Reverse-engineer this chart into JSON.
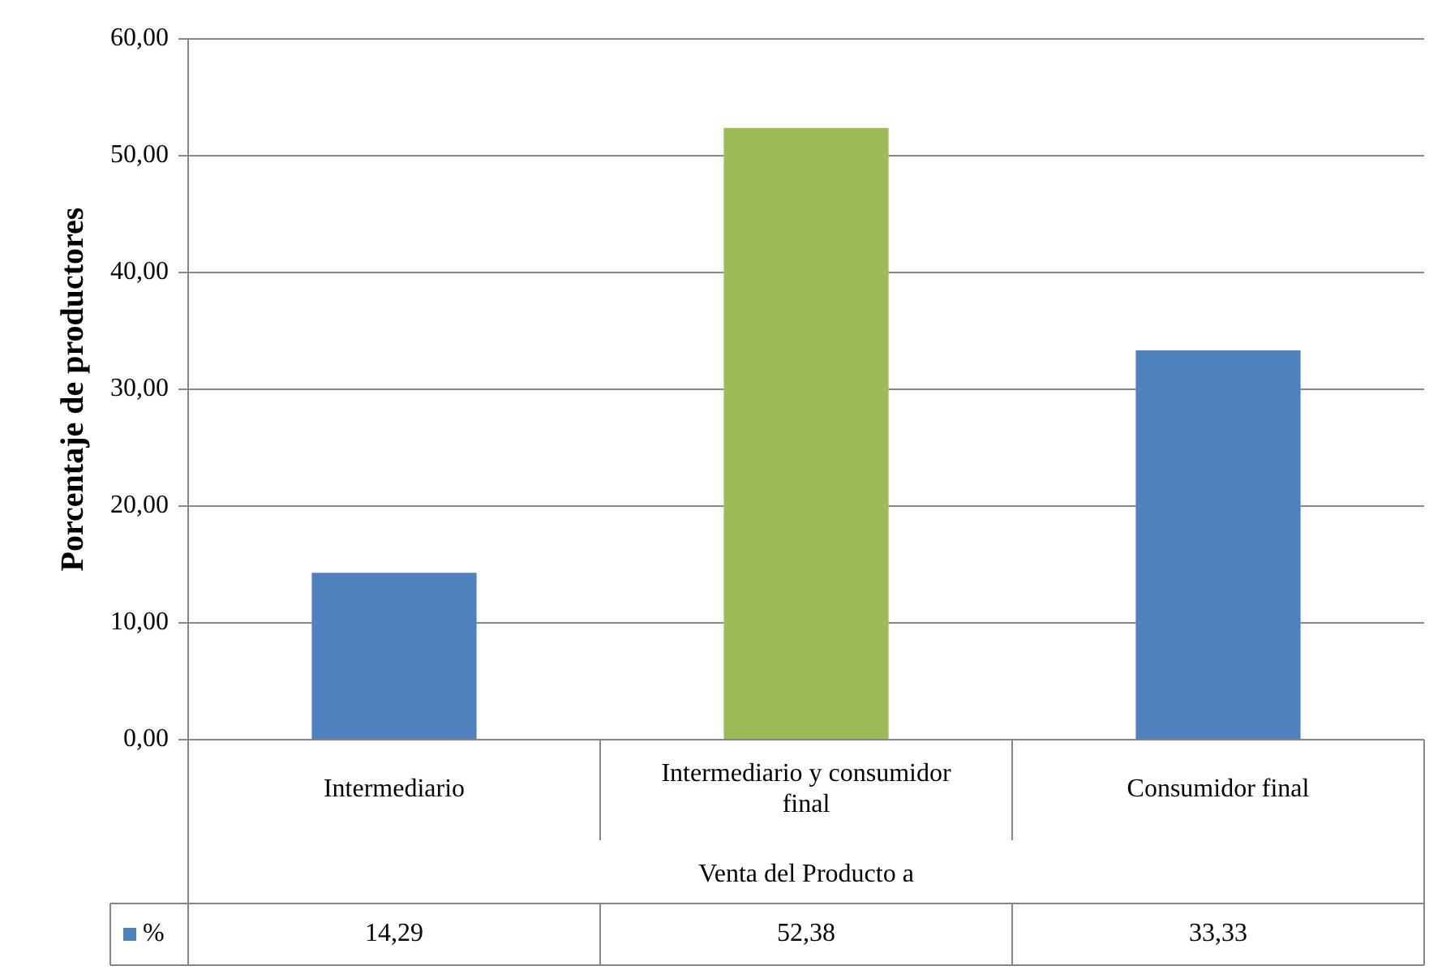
{
  "chart_data": {
    "type": "bar",
    "ylabel": "Porcentaje de productores",
    "xlabel": "Venta del Producto a",
    "categories": [
      "Intermediario",
      "Intermediario y consumidor final",
      "Consumidor final"
    ],
    "series": [
      {
        "name": "%",
        "color": "#4f81bd",
        "colors": [
          "#4f81bd",
          "#9bbb59",
          "#4f81bd"
        ],
        "values": [
          14.29,
          52.38,
          33.33
        ],
        "value_labels": [
          "14,29",
          "52,38",
          "33,33"
        ]
      }
    ],
    "ylim": [
      0,
      60
    ],
    "yticks": [
      {
        "value": 0,
        "label": "0,00"
      },
      {
        "value": 10,
        "label": "10,00"
      },
      {
        "value": 20,
        "label": "20,00"
      },
      {
        "value": 30,
        "label": "30,00"
      },
      {
        "value": 40,
        "label": "40,00"
      },
      {
        "value": 50,
        "label": "50,00"
      },
      {
        "value": 60,
        "label": "60,00"
      }
    ],
    "grid": "y",
    "legend": "bottom left"
  }
}
